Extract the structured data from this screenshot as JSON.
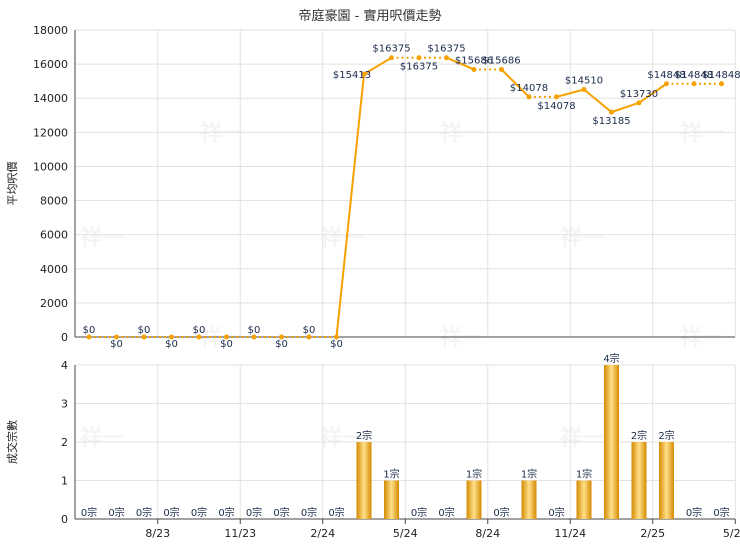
{
  "title": "帝庭豪園 - 實用呎價走勢",
  "colors": {
    "line": "#f5a100",
    "bar_dark": "#d48b00",
    "bar_light": "#ffe08a",
    "grid": "#e2e2e2"
  },
  "chart_data": [
    {
      "type": "line",
      "title": "帝庭豪園 - 實用呎價走勢",
      "ylabel": "平均呎價",
      "ylim": [
        0,
        18000
      ],
      "yticks": [
        0,
        2000,
        4000,
        6000,
        8000,
        10000,
        12000,
        14000,
        16000,
        18000
      ],
      "x": [
        0,
        1,
        2,
        3,
        4,
        5,
        6,
        7,
        8,
        9,
        10,
        11,
        12,
        13,
        14,
        15,
        16,
        17,
        18,
        19,
        20,
        21,
        22,
        23
      ],
      "values": [
        0,
        0,
        0,
        0,
        0,
        0,
        0,
        0,
        0,
        0,
        15413,
        16375,
        16375,
        16375,
        15686,
        15686,
        14078,
        14078,
        14510,
        13185,
        13730,
        14848,
        14848,
        14848
      ],
      "labels": [
        "$0",
        "$0",
        "$0",
        "$0",
        "$0",
        "$0",
        "$0",
        "$0",
        "$0",
        "$0",
        "$15413",
        "$16375",
        "$16375",
        "$16375",
        "$15686",
        "$15686",
        "$14078",
        "$14078",
        "$14510",
        "$13185",
        "$13730",
        "$14848",
        "$14848",
        "$14848"
      ],
      "grid": true,
      "legend": "none"
    },
    {
      "type": "bar",
      "ylabel": "成交宗數",
      "ylim": [
        0,
        4
      ],
      "yticks": [
        0,
        1,
        2,
        3,
        4
      ],
      "values": [
        0,
        0,
        0,
        0,
        0,
        0,
        0,
        0,
        0,
        0,
        2,
        1,
        0,
        0,
        1,
        0,
        1,
        0,
        1,
        4,
        2,
        2,
        0,
        0
      ],
      "labels": [
        "0宗",
        "0宗",
        "0宗",
        "0宗",
        "0宗",
        "0宗",
        "0宗",
        "0宗",
        "0宗",
        "0宗",
        "2宗",
        "1宗",
        "0宗",
        "0宗",
        "1宗",
        "0宗",
        "1宗",
        "0宗",
        "1宗",
        "4宗",
        "2宗",
        "2宗",
        "0宗",
        "0宗"
      ],
      "xtick_labels": [
        "8/23",
        "11/23",
        "2/24",
        "5/24",
        "8/24",
        "11/24",
        "2/25",
        "5/25"
      ],
      "xtick_positions": [
        2.5,
        5.5,
        8.5,
        11.5,
        14.5,
        17.5,
        20.5,
        23.5
      ],
      "grid": true,
      "legend": "none"
    }
  ],
  "watermark": "祥一"
}
